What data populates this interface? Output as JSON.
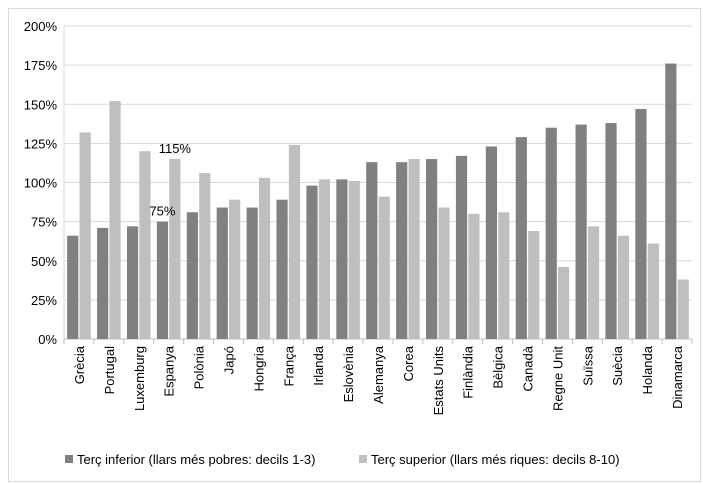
{
  "chart_data": {
    "type": "bar",
    "categories": [
      "Grècia",
      "Portugal",
      "Luxemburg",
      "Espanya",
      "Polònia",
      "Japó",
      "Hongria",
      "França",
      "Irlanda",
      "Eslovènia",
      "Alemanya",
      "Corea",
      "Estats Units",
      "Finlàndia",
      "Bèlgica",
      "Canadà",
      "Regne Unit",
      "Suïssa",
      "Suècia",
      "Holanda",
      "Dinamarca"
    ],
    "series": [
      {
        "name": "Terç inferior (llars més pobres: decils 1-3)",
        "color": "#808080",
        "values": [
          66,
          71,
          72,
          75,
          81,
          84,
          84,
          89,
          98,
          102,
          113,
          113,
          115,
          117,
          123,
          129,
          135,
          137,
          138,
          147,
          176
        ]
      },
      {
        "name": "Terç superior  (llars més riques: decils 8-10)",
        "color": "#bfbfbf",
        "values": [
          132,
          152,
          120,
          115,
          106,
          89,
          103,
          124,
          102,
          101,
          91,
          115,
          84,
          80,
          81,
          69,
          46,
          72,
          66,
          61,
          38
        ]
      }
    ],
    "ylim": [
      0,
      200
    ],
    "yticks": [
      0,
      25,
      50,
      75,
      100,
      125,
      150,
      175,
      200
    ],
    "ytick_labels": [
      "0%",
      "25%",
      "50%",
      "75%",
      "100%",
      "125%",
      "150%",
      "175%",
      "200%"
    ],
    "gridlines": true,
    "legend_position": "bottom",
    "annotations": [
      {
        "category": "Espanya",
        "series": 0,
        "text": "75%"
      },
      {
        "category": "Espanya",
        "series": 1,
        "text": "115%"
      }
    ]
  }
}
